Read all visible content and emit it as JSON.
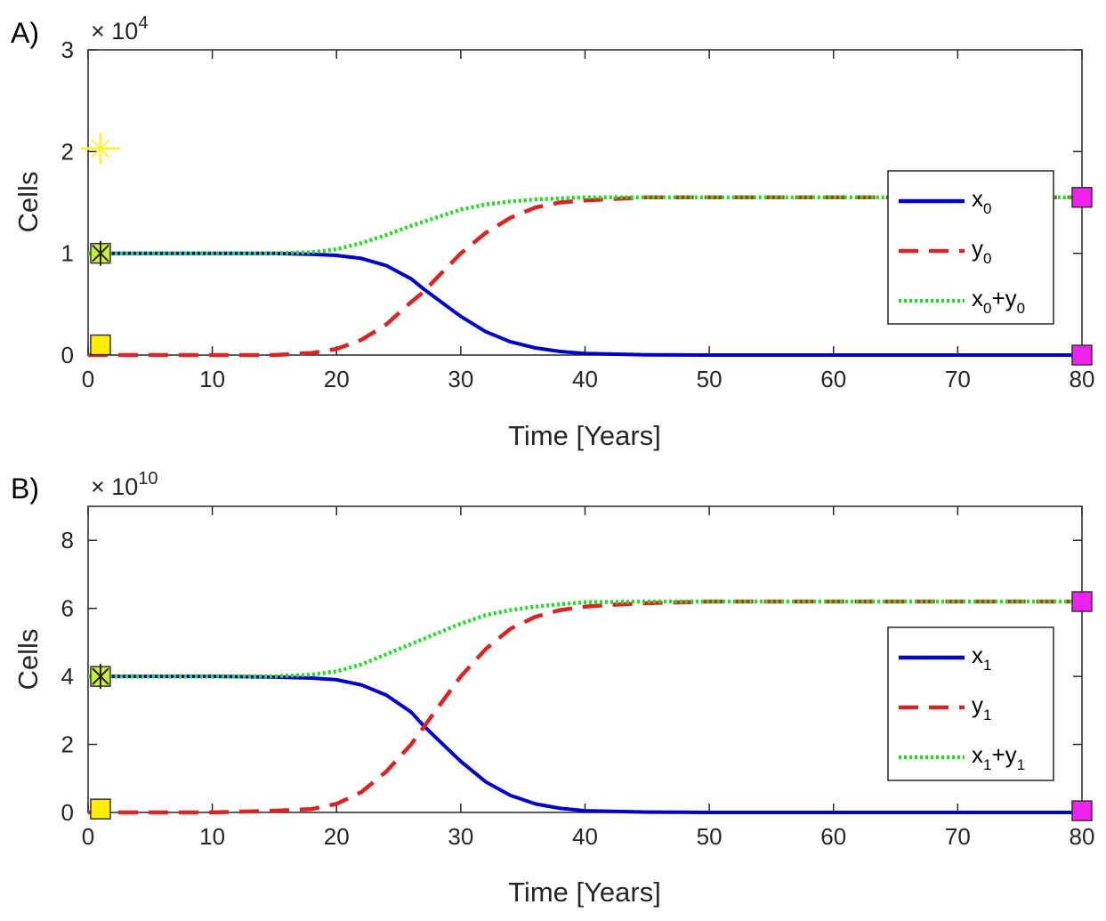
{
  "chart_data": [
    {
      "type": "line",
      "panel_label": "A)",
      "multiplier": {
        "base": "× 10",
        "exponent": "4"
      },
      "xlabel": "Time [Years]",
      "ylabel": "Cells",
      "xlim": [
        0,
        80
      ],
      "ylim": [
        0,
        3
      ],
      "x_ticks": [
        "0",
        "10",
        "20",
        "30",
        "40",
        "50",
        "60",
        "70",
        "80"
      ],
      "y_ticks": [
        "0",
        "1",
        "2",
        "3"
      ],
      "legend_position": "right",
      "series": [
        {
          "name": "x",
          "subscript": "0",
          "color": "#0000CC",
          "style": "solid",
          "x": [
            0,
            10,
            15,
            18,
            20,
            22,
            24,
            26,
            27,
            28,
            30,
            32,
            34,
            36,
            38,
            40,
            45,
            50,
            60,
            70,
            80
          ],
          "y": [
            1.0,
            1.0,
            1.0,
            0.99,
            0.98,
            0.95,
            0.88,
            0.75,
            0.65,
            0.56,
            0.38,
            0.23,
            0.13,
            0.07,
            0.035,
            0.015,
            0.003,
            0.0,
            0.0,
            0.0,
            0.0
          ]
        },
        {
          "name": "y",
          "subscript": "0",
          "color": "#DD2222",
          "style": "dashed",
          "x": [
            0,
            10,
            15,
            18,
            20,
            22,
            24,
            26,
            27,
            28,
            30,
            32,
            34,
            36,
            38,
            40,
            45,
            50,
            60,
            70,
            80
          ],
          "y": [
            0.0,
            0.0,
            0.0,
            0.02,
            0.06,
            0.15,
            0.3,
            0.52,
            0.62,
            0.75,
            1.0,
            1.2,
            1.35,
            1.45,
            1.5,
            1.52,
            1.55,
            1.55,
            1.55,
            1.55,
            1.55
          ]
        },
        {
          "name": "x",
          "name2": "+y",
          "subscript": "0",
          "color": "#22DD22",
          "style": "dotted",
          "x": [
            0,
            10,
            15,
            18,
            20,
            22,
            24,
            26,
            28,
            30,
            32,
            34,
            36,
            38,
            40,
            45,
            50,
            60,
            70,
            80
          ],
          "y": [
            1.0,
            1.0,
            1.0,
            1.01,
            1.04,
            1.1,
            1.18,
            1.27,
            1.35,
            1.43,
            1.48,
            1.51,
            1.53,
            1.54,
            1.55,
            1.55,
            1.55,
            1.55,
            1.55,
            1.55
          ]
        }
      ],
      "markers": [
        {
          "kind": "square",
          "color": "#FFEE00",
          "x": 1,
          "y": 0.1
        },
        {
          "kind": "square",
          "color": "#CCEE33",
          "x": 1,
          "y": 1.0
        },
        {
          "kind": "star",
          "color": "#FFEE44",
          "x": 1,
          "y": 2.03
        },
        {
          "kind": "square",
          "color": "#EE22EE",
          "x": 80,
          "y": 1.55
        },
        {
          "kind": "square",
          "color": "#EE22EE",
          "x": 80,
          "y": 0.0
        }
      ]
    },
    {
      "type": "line",
      "panel_label": "B)",
      "multiplier": {
        "base": "× 10",
        "exponent": "10"
      },
      "xlabel": "Time [Years]",
      "ylabel": "Cells",
      "xlim": [
        0,
        80
      ],
      "ylim": [
        0,
        9
      ],
      "x_ticks": [
        "0",
        "10",
        "20",
        "30",
        "40",
        "50",
        "60",
        "70",
        "80"
      ],
      "y_ticks": [
        "0",
        "2",
        "4",
        "6",
        "8"
      ],
      "legend_position": "right",
      "series": [
        {
          "name": "x",
          "subscript": "1",
          "color": "#0000CC",
          "style": "solid",
          "x": [
            0,
            10,
            15,
            18,
            20,
            22,
            24,
            26,
            27,
            28,
            30,
            32,
            34,
            36,
            38,
            40,
            45,
            50,
            60,
            70,
            80
          ],
          "y": [
            4.0,
            4.0,
            3.98,
            3.95,
            3.9,
            3.75,
            3.45,
            2.95,
            2.55,
            2.2,
            1.5,
            0.9,
            0.5,
            0.25,
            0.12,
            0.05,
            0.01,
            0.0,
            0.0,
            0.0,
            0.0
          ]
        },
        {
          "name": "y",
          "subscript": "1",
          "color": "#DD2222",
          "style": "dashed",
          "x": [
            0,
            10,
            15,
            18,
            20,
            22,
            24,
            26,
            27,
            28,
            30,
            32,
            34,
            36,
            38,
            40,
            42,
            45,
            50,
            60,
            70,
            80
          ],
          "y": [
            0.0,
            0.0,
            0.05,
            0.1,
            0.25,
            0.6,
            1.2,
            2.0,
            2.5,
            3.0,
            4.0,
            4.8,
            5.4,
            5.75,
            5.95,
            6.05,
            6.1,
            6.15,
            6.2,
            6.2,
            6.2,
            6.2
          ]
        },
        {
          "name": "x",
          "name2": "+y",
          "subscript": "1",
          "color": "#22DD22",
          "style": "dotted",
          "x": [
            0,
            10,
            15,
            18,
            20,
            22,
            24,
            26,
            28,
            30,
            32,
            34,
            36,
            38,
            40,
            45,
            50,
            60,
            70,
            80
          ],
          "y": [
            4.0,
            4.0,
            4.0,
            4.05,
            4.15,
            4.35,
            4.65,
            4.95,
            5.25,
            5.55,
            5.8,
            5.95,
            6.05,
            6.12,
            6.18,
            6.2,
            6.2,
            6.2,
            6.2,
            6.2
          ]
        }
      ],
      "markers": [
        {
          "kind": "square",
          "color": "#FFEE00",
          "x": 1,
          "y": 0.1
        },
        {
          "kind": "square",
          "color": "#CCEE33",
          "x": 1,
          "y": 4.0
        },
        {
          "kind": "square",
          "color": "#EE22EE",
          "x": 80,
          "y": 6.2
        },
        {
          "kind": "square",
          "color": "#EE22EE",
          "x": 80,
          "y": 0.05
        }
      ]
    }
  ]
}
